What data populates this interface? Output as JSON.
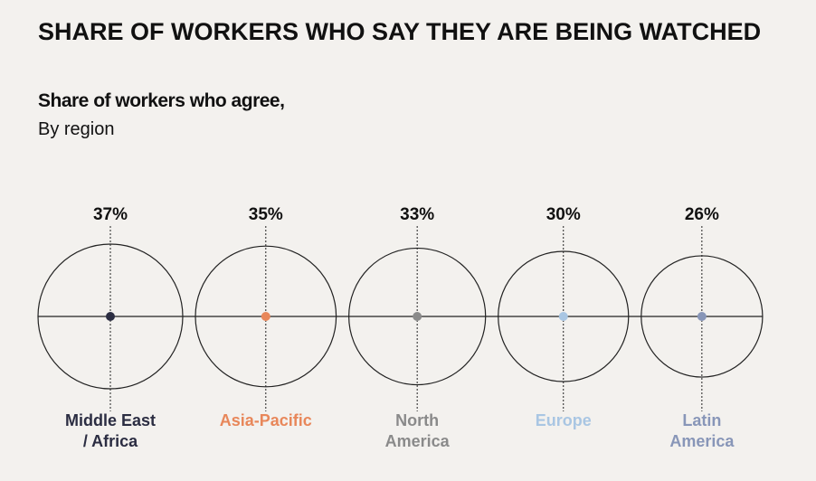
{
  "chart_data": {
    "type": "bubble",
    "title": "SHARE OF WORKERS WHO SAY THEY ARE BEING WATCHED",
    "subtitle": "Share of workers who agree,",
    "subtitle2": "By region",
    "categories": [
      "Middle East\n/ Africa",
      "Asia-Pacific",
      "North\nAmerica",
      "Europe",
      "Latin\nAmerica"
    ],
    "values": [
      37,
      35,
      33,
      30,
      26
    ],
    "value_labels": [
      "37%",
      "35%",
      "33%",
      "30%",
      "26%"
    ],
    "colors": [
      "#2b2d42",
      "#e8875a",
      "#8a8a8a",
      "#a9c6e3",
      "#8896b8"
    ]
  }
}
